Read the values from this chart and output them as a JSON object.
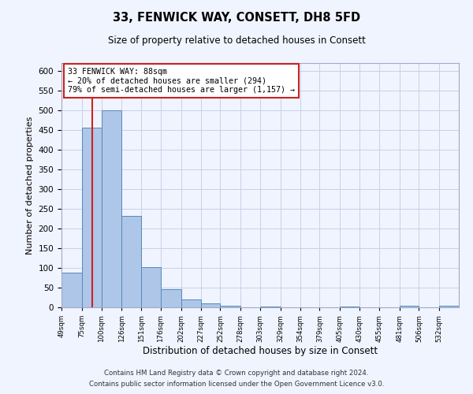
{
  "title1": "33, FENWICK WAY, CONSETT, DH8 5FD",
  "title2": "Size of property relative to detached houses in Consett",
  "xlabel": "Distribution of detached houses by size in Consett",
  "ylabel": "Number of detached properties",
  "annotation_line1": "33 FENWICK WAY: 88sqm",
  "annotation_line2": "← 20% of detached houses are smaller (294)",
  "annotation_line3": "79% of semi-detached houses are larger (1,157) →",
  "bar_edges": [
    49,
    75,
    100,
    126,
    151,
    176,
    202,
    227,
    252,
    278,
    303,
    329,
    354,
    379,
    405,
    430,
    455,
    481,
    506,
    532,
    557
  ],
  "bar_heights": [
    88,
    457,
    500,
    233,
    102,
    47,
    20,
    10,
    5,
    0,
    3,
    0,
    0,
    0,
    2,
    0,
    0,
    5,
    0,
    5
  ],
  "bar_color": "#aec6e8",
  "bar_edge_color": "#5588bb",
  "vline_color": "#cc2222",
  "vline_x": 88,
  "annotation_box_color": "#ffffff",
  "annotation_box_edge": "#cc2222",
  "ylim": [
    0,
    620
  ],
  "yticks": [
    0,
    50,
    100,
    150,
    200,
    250,
    300,
    350,
    400,
    450,
    500,
    550,
    600
  ],
  "footer1": "Contains HM Land Registry data © Crown copyright and database right 2024.",
  "footer2": "Contains public sector information licensed under the Open Government Licence v3.0.",
  "bg_color": "#f0f4ff",
  "grid_color": "#c8d0e8"
}
